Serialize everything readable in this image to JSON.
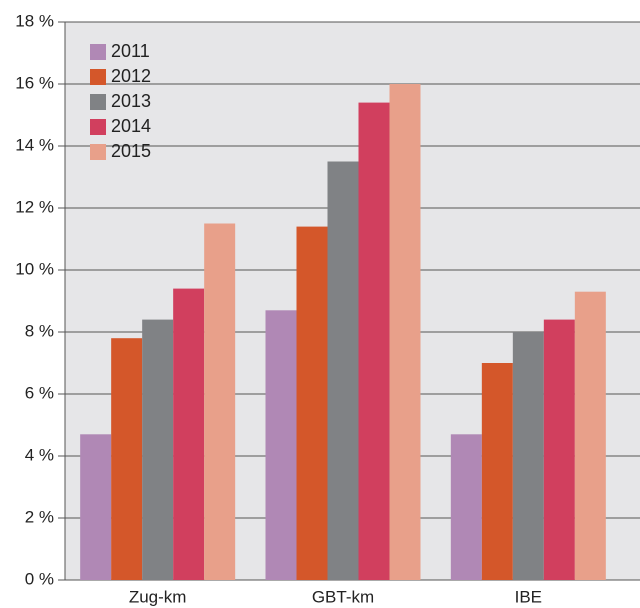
{
  "chart_data": {
    "type": "bar",
    "categories": [
      "Zug-km",
      "GBT-km",
      "IBE"
    ],
    "series": [
      {
        "name": "2011",
        "color": "#b088b5",
        "values": [
          4.7,
          8.7,
          4.7
        ]
      },
      {
        "name": "2012",
        "color": "#d4572a",
        "values": [
          7.8,
          11.4,
          7.0
        ]
      },
      {
        "name": "2013",
        "color": "#808285",
        "values": [
          8.4,
          13.5,
          8.0
        ]
      },
      {
        "name": "2014",
        "color": "#d13f5e",
        "values": [
          9.4,
          15.4,
          8.4
        ]
      },
      {
        "name": "2015",
        "color": "#e8a08a",
        "values": [
          11.5,
          16.0,
          9.3
        ]
      }
    ],
    "ylim": [
      0,
      18
    ],
    "yticks": [
      {
        "value": 0,
        "label": "0 %"
      },
      {
        "value": 2,
        "label": "2 %"
      },
      {
        "value": 4,
        "label": "4 %"
      },
      {
        "value": 6,
        "label": "6 %"
      },
      {
        "value": 8,
        "label": "8 %"
      },
      {
        "value": 10,
        "label": "10 %"
      },
      {
        "value": 12,
        "label": "12 %"
      },
      {
        "value": 14,
        "label": "14 %"
      },
      {
        "value": 16,
        "label": "16 %"
      },
      {
        "value": 18,
        "label": "18 %"
      }
    ],
    "grid": true,
    "legend": "top-left"
  }
}
